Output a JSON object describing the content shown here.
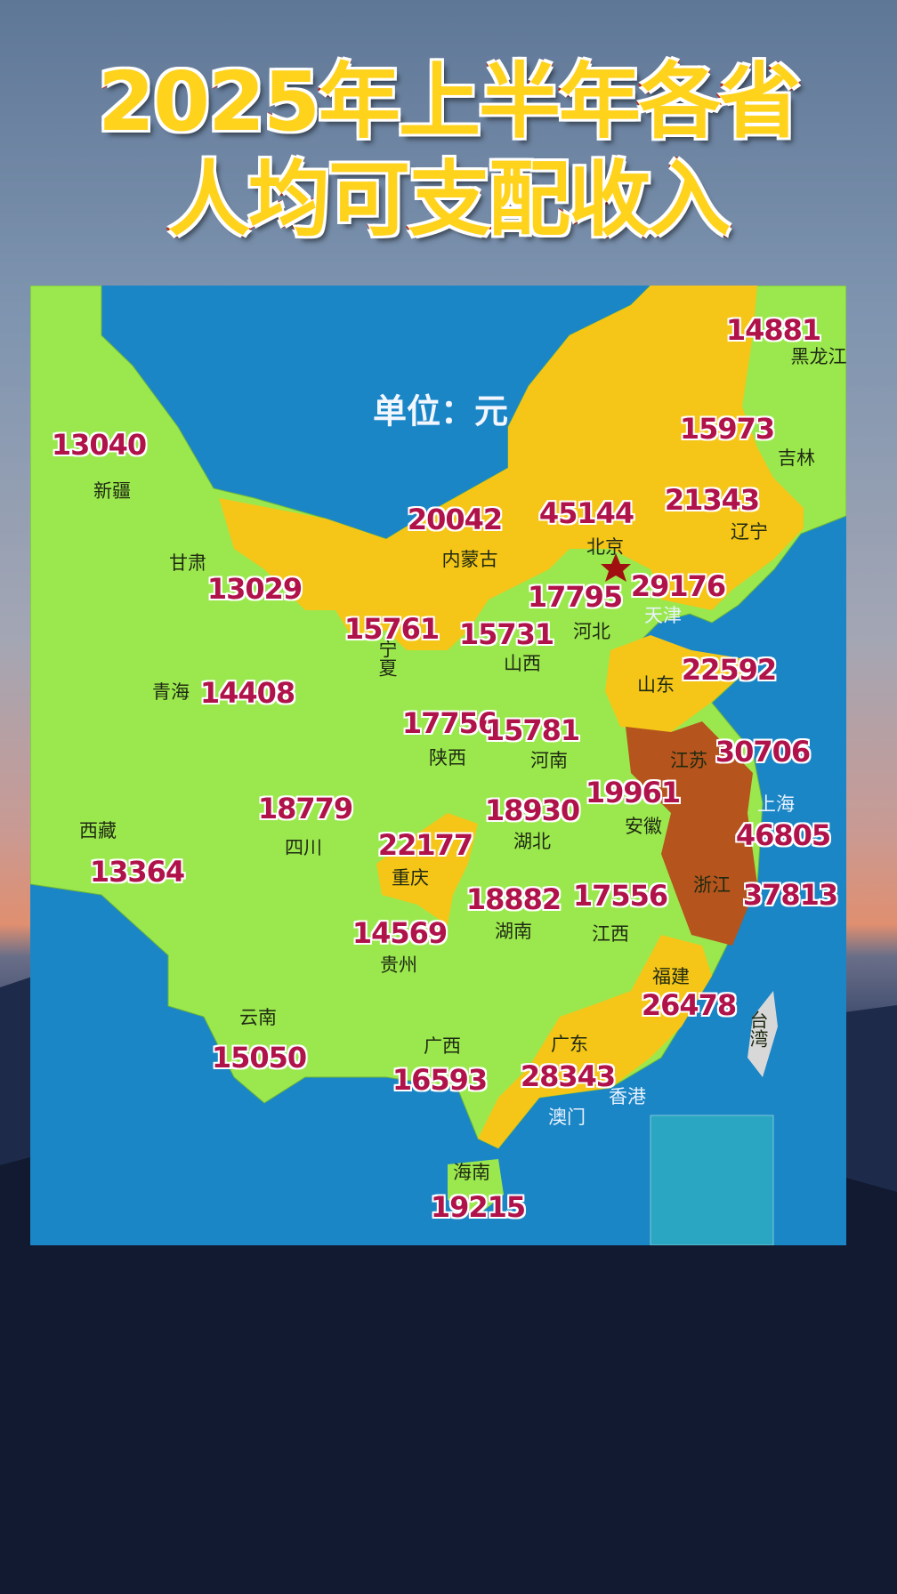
{
  "title": {
    "line1": "2025年上半年各省",
    "line2": "人均可支配收入"
  },
  "unit_label": "单位：元",
  "colors": {
    "ocean": "#1b86c6",
    "low": "#9be84e",
    "mid": "#f5c518",
    "high": "#b5541c",
    "capital": "#a01010",
    "taiwan": "#d8d8d8"
  },
  "provinces": [
    {
      "name": "黑龙江",
      "value": "14881"
    },
    {
      "name": "吉林",
      "value": "15973"
    },
    {
      "name": "新疆",
      "value": "13040"
    },
    {
      "name": "内蒙古",
      "value": "20042"
    },
    {
      "name": "北京",
      "value": "45144"
    },
    {
      "name": "辽宁",
      "value": "21343"
    },
    {
      "name": "甘肃",
      "value": "13029"
    },
    {
      "name": "河北",
      "value": "17795"
    },
    {
      "name": "天津",
      "value": "29176"
    },
    {
      "name": "宁夏",
      "value": "15761"
    },
    {
      "name": "山西",
      "value": "15731"
    },
    {
      "name": "山东",
      "value": "22592"
    },
    {
      "name": "青海",
      "value": "14408"
    },
    {
      "name": "陕西",
      "value": "17756"
    },
    {
      "name": "河南",
      "value": "15781"
    },
    {
      "name": "江苏",
      "value": "30706"
    },
    {
      "name": "上海",
      "value": "46805"
    },
    {
      "name": "四川",
      "value": "18779"
    },
    {
      "name": "安徽",
      "value": "19961"
    },
    {
      "name": "湖北",
      "value": "18930"
    },
    {
      "name": "西藏",
      "value": "13364"
    },
    {
      "name": "重庆",
      "value": "22177"
    },
    {
      "name": "浙江",
      "value": "37813"
    },
    {
      "name": "湖南",
      "value": "18882"
    },
    {
      "name": "江西",
      "value": "17556"
    },
    {
      "name": "贵州",
      "value": "14569"
    },
    {
      "name": "福建",
      "value": "26478"
    },
    {
      "name": "云南",
      "value": "15050"
    },
    {
      "name": "广西",
      "value": "16593"
    },
    {
      "name": "广东",
      "value": "28343"
    },
    {
      "name": "海南",
      "value": "19215"
    }
  ],
  "other_labels": {
    "taiwan": "台湾",
    "hongkong": "香港",
    "macau": "澳门"
  }
}
